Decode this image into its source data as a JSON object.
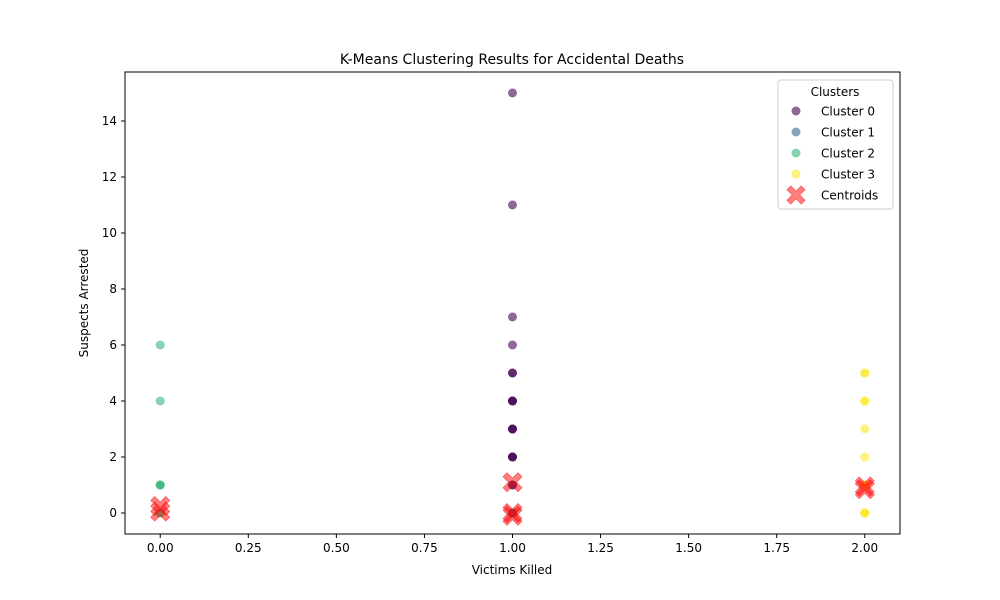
{
  "chart_data": {
    "type": "scatter",
    "title": "K-Means Clustering Results for Accidental Deaths",
    "xlabel": "Victims Killed",
    "ylabel": "Suspects Arrested",
    "xlim": [
      -0.1,
      2.1
    ],
    "ylim": [
      -0.75,
      15.75
    ],
    "x_ticks": [
      0.0,
      0.25,
      0.5,
      0.75,
      1.0,
      1.25,
      1.5,
      1.75,
      2.0
    ],
    "x_tick_labels": [
      "0.00",
      "0.25",
      "0.50",
      "0.75",
      "1.00",
      "1.25",
      "1.50",
      "1.75",
      "2.00"
    ],
    "y_ticks": [
      0,
      2,
      4,
      6,
      8,
      10,
      12,
      14
    ],
    "y_tick_labels": [
      "0",
      "2",
      "4",
      "6",
      "8",
      "10",
      "12",
      "14"
    ],
    "grid": false,
    "legend": {
      "title": "Clusters",
      "placement": "top-right"
    },
    "series": [
      {
        "name": "Cluster 0",
        "color": "#440154",
        "points": [
          [
            1,
            15
          ],
          [
            1,
            11
          ],
          [
            1,
            7
          ],
          [
            1,
            6
          ],
          [
            1,
            5
          ],
          [
            1,
            5
          ],
          [
            1,
            4
          ],
          [
            1,
            4
          ],
          [
            1,
            4
          ],
          [
            1,
            3
          ],
          [
            1,
            3
          ],
          [
            1,
            3
          ],
          [
            1,
            2
          ],
          [
            1,
            2
          ],
          [
            1,
            2
          ],
          [
            1,
            1
          ],
          [
            1,
            1
          ]
        ]
      },
      {
        "name": "Cluster 1",
        "color": "#31688e",
        "points": [
          [
            1,
            0
          ],
          [
            1,
            0
          ],
          [
            1,
            0
          ]
        ]
      },
      {
        "name": "Cluster 2",
        "color": "#35b779",
        "points": [
          [
            0,
            6
          ],
          [
            0,
            4
          ],
          [
            0,
            1
          ],
          [
            0,
            1
          ],
          [
            0,
            1
          ],
          [
            0,
            0
          ],
          [
            0,
            0
          ]
        ]
      },
      {
        "name": "Cluster 3",
        "color": "#fde725",
        "points": [
          [
            2,
            5
          ],
          [
            2,
            5
          ],
          [
            2,
            4
          ],
          [
            2,
            4
          ],
          [
            2,
            3
          ],
          [
            2,
            2
          ],
          [
            2,
            1
          ],
          [
            2,
            1
          ],
          [
            2,
            0
          ],
          [
            2,
            0
          ],
          [
            2,
            0
          ]
        ]
      }
    ],
    "centroids": {
      "name": "Centroids",
      "color": "#ff0000",
      "marker": "X",
      "points": [
        [
          1.0,
          1.1
        ],
        [
          0.0,
          0.25
        ],
        [
          0.0,
          0.05
        ],
        [
          1.0,
          0.0
        ],
        [
          1.0,
          -0.1
        ],
        [
          2.0,
          0.95
        ],
        [
          2.0,
          0.85
        ]
      ]
    }
  }
}
